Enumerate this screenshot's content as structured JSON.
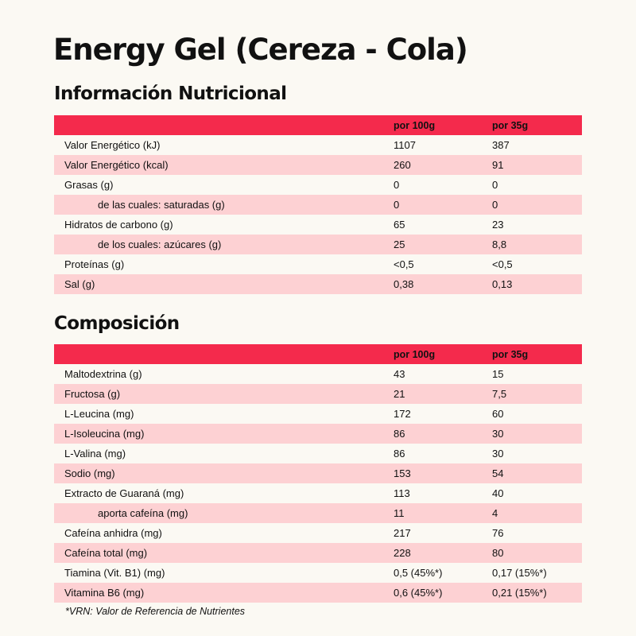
{
  "title": "Energy Gel  (Cereza - Cola)",
  "colors": {
    "background": "#fbf9f3",
    "header_red": "#f42a4c",
    "row_pink": "#fdd1d3"
  },
  "nutrition": {
    "heading": "Información Nutricional",
    "col_headers": [
      "por 100g",
      "por 35g"
    ],
    "rows": [
      {
        "label": "Valor Energético (kJ)",
        "v1": "1107",
        "v2": "387"
      },
      {
        "label": "Valor Energético (kcal)",
        "v1": "260",
        "v2": "91"
      },
      {
        "label": "Grasas (g)",
        "v1": "0",
        "v2": "0"
      },
      {
        "label": "de las cuales: saturadas (g)",
        "v1": "0",
        "v2": "0"
      },
      {
        "label": "Hidratos de carbono (g)",
        "v1": "65",
        "v2": "23"
      },
      {
        "label": "de los cuales: azúcares (g)",
        "v1": "25",
        "v2": "8,8"
      },
      {
        "label": "Proteínas (g)",
        "v1": "<0,5",
        "v2": "<0,5"
      },
      {
        "label": "Sal (g)",
        "v1": "0,38",
        "v2": "0,13"
      }
    ]
  },
  "composition": {
    "heading": "Composición",
    "col_headers": [
      "por 100g",
      "por 35g"
    ],
    "rows": [
      {
        "label": "Maltodextrina (g)",
        "v1": "43",
        "v2": "15"
      },
      {
        "label": "Fructosa (g)",
        "v1": "21",
        "v2": "7,5"
      },
      {
        "label": "L-Leucina (mg)",
        "v1": "172",
        "v2": "60"
      },
      {
        "label": "L-Isoleucina (mg)",
        "v1": "86",
        "v2": "30"
      },
      {
        "label": "L-Valina (mg)",
        "v1": "86",
        "v2": "30"
      },
      {
        "label": "Sodio (mg)",
        "v1": "153",
        "v2": "54"
      },
      {
        "label": "Extracto de Guaraná (mg)",
        "v1": "113",
        "v2": "40"
      },
      {
        "label": "aporta cafeína (mg)",
        "v1": "11",
        "v2": "4"
      },
      {
        "label": "Cafeína anhidra (mg)",
        "v1": "217",
        "v2": "76"
      },
      {
        "label": "Cafeína total (mg)",
        "v1": "228",
        "v2": "80"
      },
      {
        "label": "Tiamina (Vit. B1) (mg)",
        "v1": "0,5 (45%*)",
        "v2": "0,17 (15%*)"
      },
      {
        "label": "Vitamina B6 (mg)",
        "v1": "0,6 (45%*)",
        "v2": "0,21 (15%*)"
      }
    ]
  },
  "footnote": "*VRN: Valor de Referencia de Nutrientes"
}
